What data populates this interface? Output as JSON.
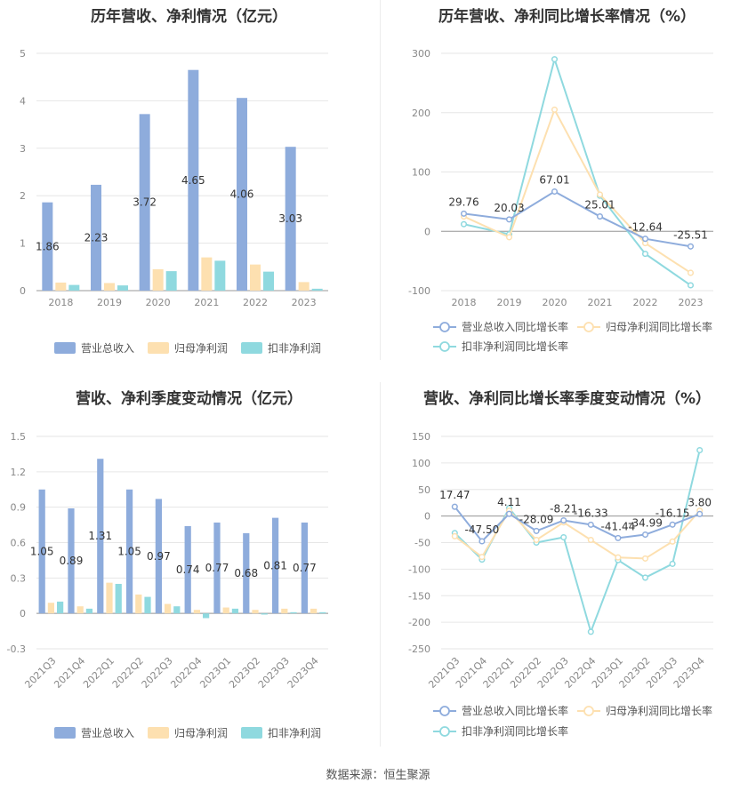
{
  "source": "数据来源：恒生聚源",
  "colors": {
    "revenue": "#8eacdc",
    "net_profit": "#fde0b0",
    "deducted_profit": "#8fd9df",
    "line_revenue": "#8eacdc",
    "line_net": "#fde0b0",
    "line_deducted": "#8fd9df"
  },
  "chart_data": [
    {
      "type": "bar",
      "title": "历年营收、净利情况（亿元）",
      "categories": [
        "2018",
        "2019",
        "2020",
        "2021",
        "2022",
        "2023"
      ],
      "ylim": [
        0,
        5
      ],
      "yticks": [
        0,
        1,
        2,
        3,
        4,
        5
      ],
      "series": [
        {
          "name": "营业总收入",
          "values": [
            1.86,
            2.23,
            3.72,
            4.65,
            4.06,
            3.03
          ],
          "labels": [
            "1.86",
            "2.23",
            "3.72",
            "4.65",
            "4.06",
            "3.03"
          ]
        },
        {
          "name": "归母净利润",
          "values": [
            0.17,
            0.16,
            0.45,
            0.7,
            0.55,
            0.18
          ]
        },
        {
          "name": "扣非净利润",
          "values": [
            0.12,
            0.11,
            0.41,
            0.63,
            0.4,
            0.04
          ]
        }
      ],
      "legend": "bottom"
    },
    {
      "type": "line",
      "title": "历年营收、净利同比增长率情况（%）",
      "categories": [
        "2018",
        "2019",
        "2020",
        "2021",
        "2022",
        "2023"
      ],
      "ylim": [
        -100,
        300
      ],
      "yticks": [
        -100,
        0,
        100,
        200,
        300
      ],
      "series": [
        {
          "name": "营业总收入同比增长率",
          "values": [
            29.76,
            20.03,
            67.01,
            25.01,
            -12.64,
            -25.51
          ],
          "labels": [
            "29.76",
            "20.03",
            "67.01",
            "25.01",
            "-12.64",
            "-25.51"
          ]
        },
        {
          "name": "归母净利润同比增长率",
          "values": [
            25,
            -10,
            205,
            62,
            -20,
            -70
          ]
        },
        {
          "name": "扣非净利润同比增长率",
          "values": [
            12,
            -5,
            290,
            60,
            -38,
            -91
          ]
        }
      ],
      "legend": "bottom"
    },
    {
      "type": "bar",
      "title": "营收、净利季度变动情况（亿元）",
      "categories": [
        "2021Q3",
        "2021Q4",
        "2022Q1",
        "2022Q2",
        "2022Q3",
        "2022Q4",
        "2023Q1",
        "2023Q2",
        "2023Q3",
        "2023Q4"
      ],
      "ylim": [
        -0.3,
        1.5
      ],
      "yticks": [
        -0.3,
        0,
        0.3,
        0.6,
        0.9,
        1.2,
        1.5
      ],
      "series": [
        {
          "name": "营业总收入",
          "values": [
            1.05,
            0.89,
            1.31,
            1.05,
            0.97,
            0.74,
            0.77,
            0.68,
            0.81,
            0.77
          ],
          "labels": [
            "1.05",
            "0.89",
            "1.31",
            "1.05",
            "0.97",
            "0.74",
            "0.77",
            "0.68",
            "0.81",
            "0.77"
          ]
        },
        {
          "name": "归母净利润",
          "values": [
            0.09,
            0.06,
            0.26,
            0.16,
            0.08,
            0.03,
            0.05,
            0.03,
            0.04,
            0.04
          ]
        },
        {
          "name": "扣非净利润",
          "values": [
            0.1,
            0.04,
            0.25,
            0.14,
            0.06,
            -0.04,
            0.04,
            -0.01,
            0.01,
            0.01
          ]
        }
      ],
      "legend": "bottom"
    },
    {
      "type": "line",
      "title": "营收、净利同比增长率季度变动情况（%）",
      "categories": [
        "2021Q3",
        "2021Q4",
        "2022Q1",
        "2022Q2",
        "2022Q3",
        "2022Q4",
        "2023Q1",
        "2023Q2",
        "2023Q3",
        "2023Q4"
      ],
      "ylim": [
        -250,
        150
      ],
      "yticks": [
        -250,
        -200,
        -150,
        -100,
        -50,
        0,
        50,
        100,
        150
      ],
      "series": [
        {
          "name": "营业总收入同比增长率",
          "values": [
            17.47,
            -47.5,
            4.11,
            -28.09,
            -8.21,
            -16.33,
            -41.44,
            -34.99,
            -16.15,
            3.8
          ],
          "labels": [
            "17.47",
            "-47.50",
            "4.11",
            "-28.09",
            "-8.21",
            "-16.33",
            "-41.44",
            "-34.99",
            "-16.15",
            "3.80"
          ]
        },
        {
          "name": "归母净利润同比增长率",
          "values": [
            -38,
            -77,
            10,
            -45,
            -12,
            -45,
            -78,
            -80,
            -48,
            10
          ]
        },
        {
          "name": "扣非净利润同比增长率",
          "values": [
            -32,
            -82,
            15,
            -50,
            -40,
            -218,
            -83,
            -116,
            -90,
            124
          ]
        }
      ],
      "legend": "bottom"
    }
  ]
}
